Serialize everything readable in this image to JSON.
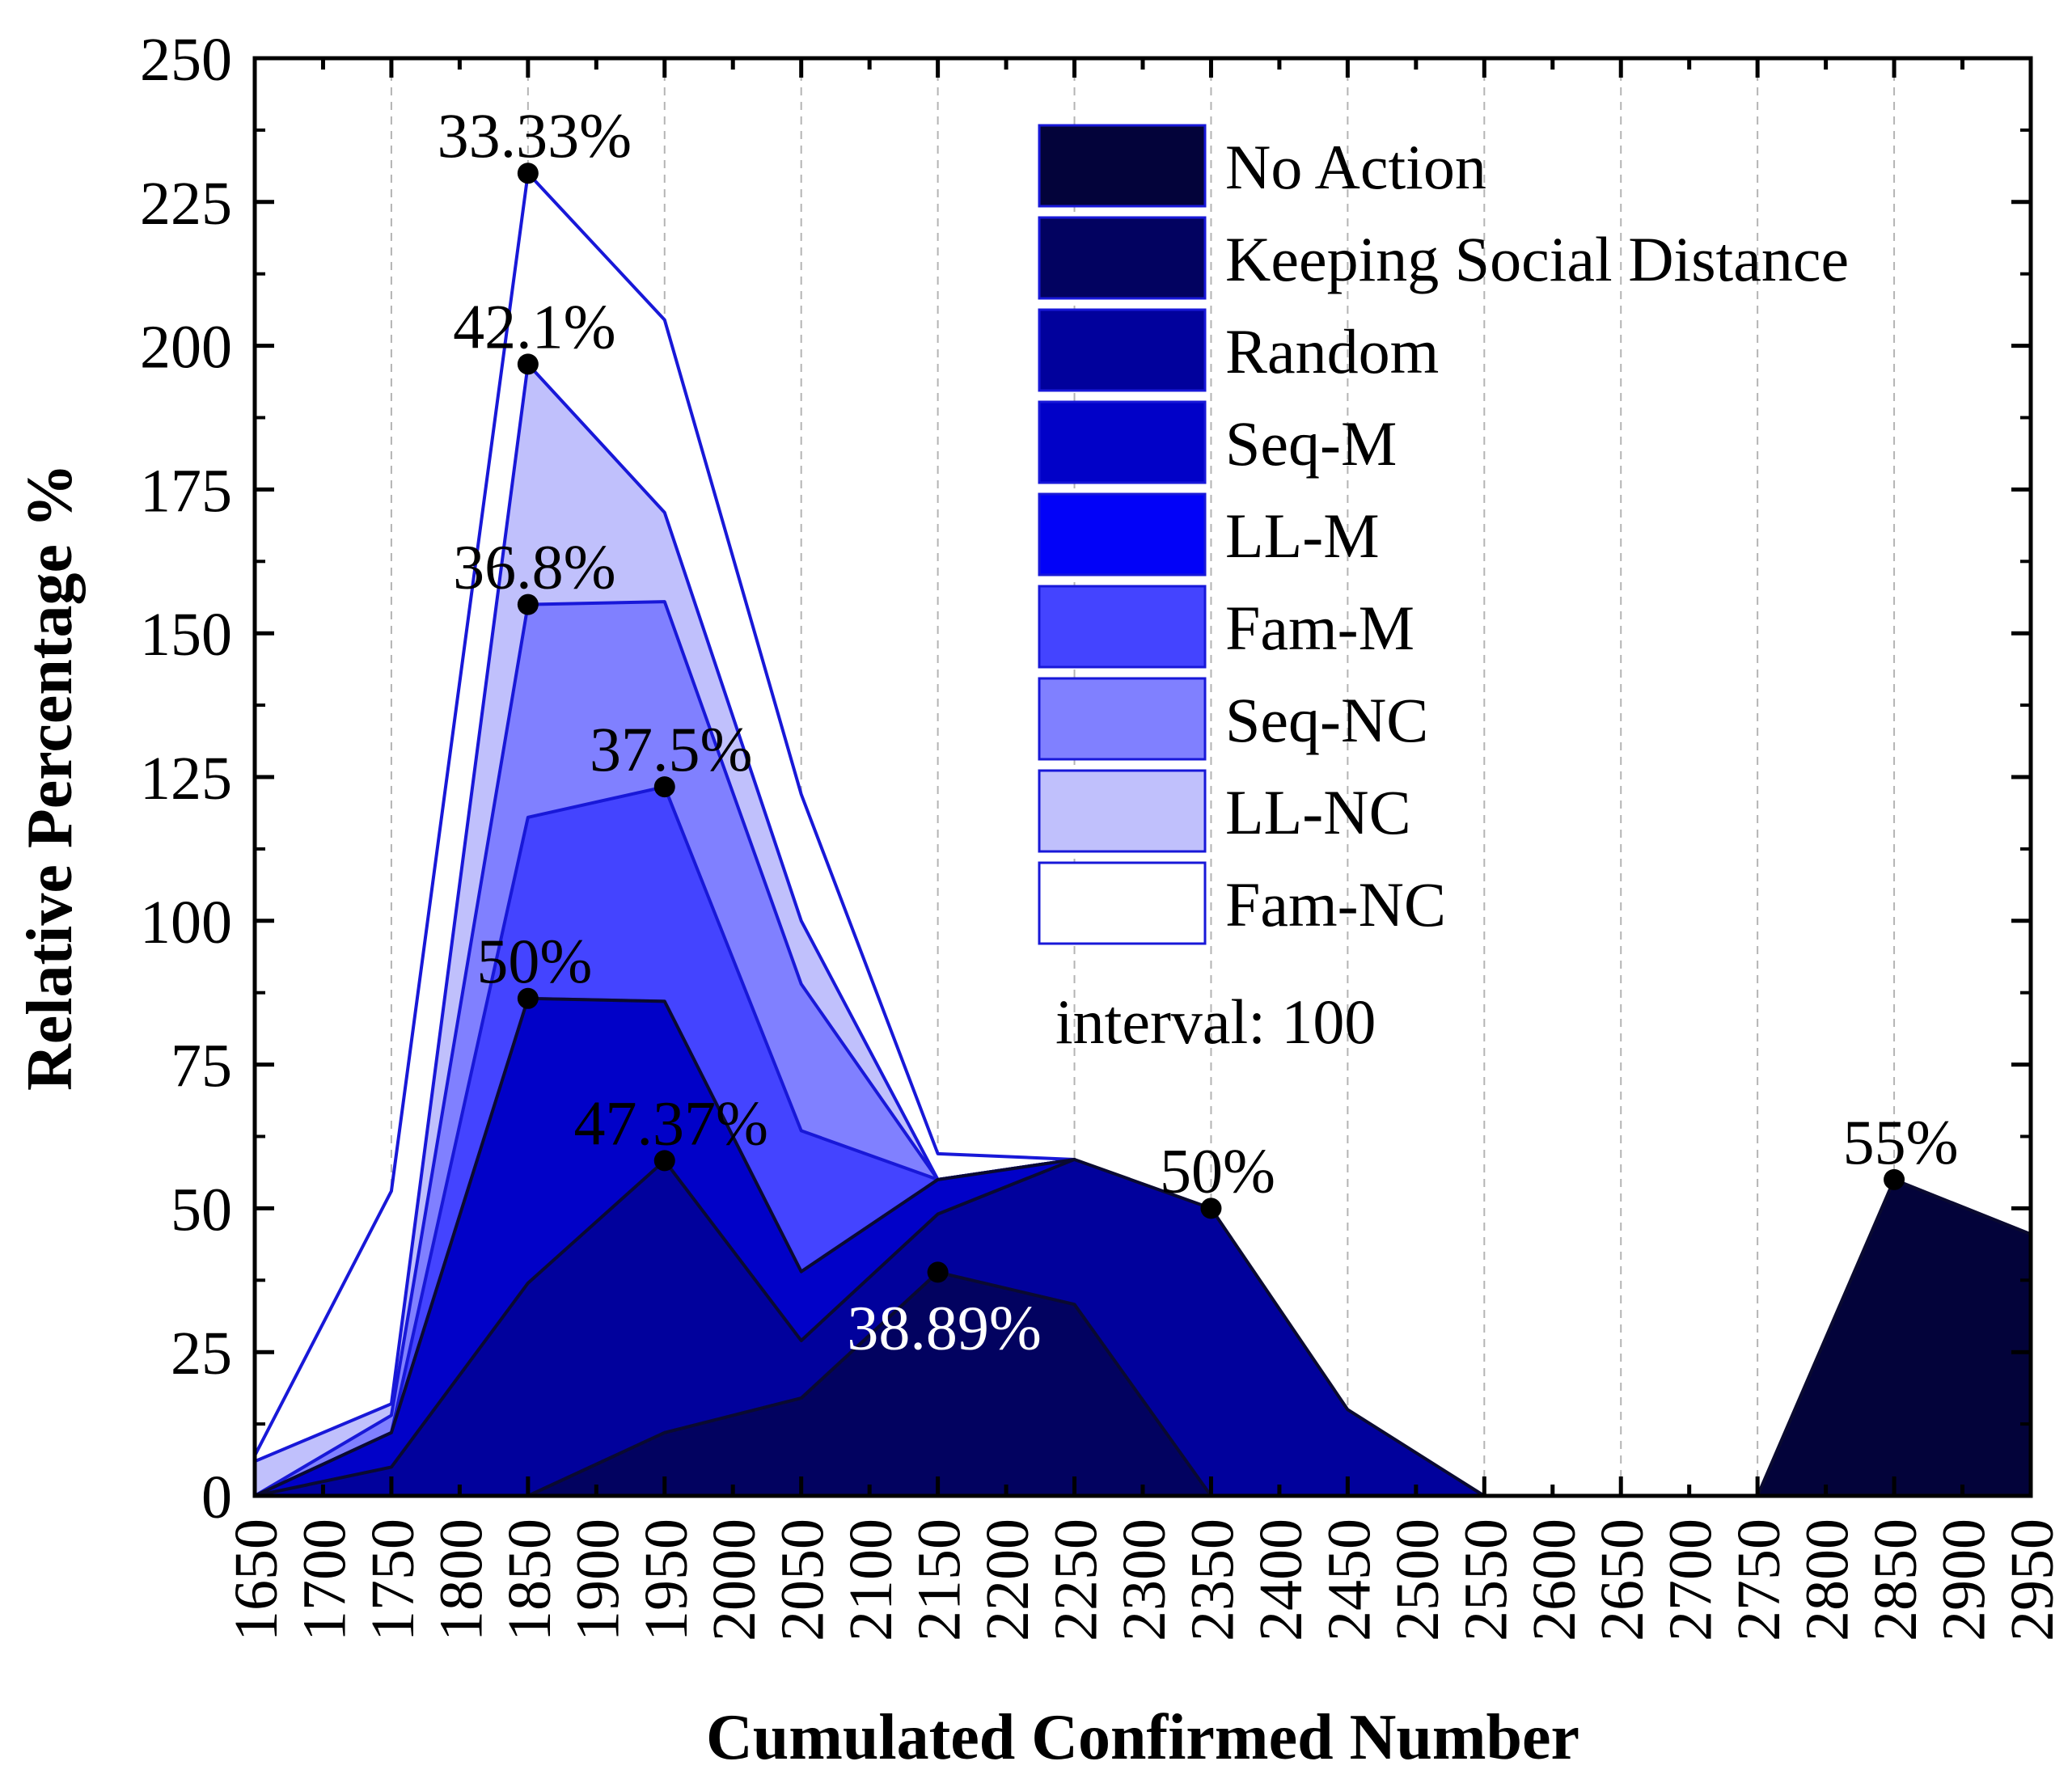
{
  "chart_data": {
    "type": "area",
    "title": "",
    "xlabel": "Cumulated Confirmed Number",
    "ylabel": "Relative Percentage %",
    "x": [
      1650,
      1750,
      1850,
      1950,
      2050,
      2150,
      2250,
      2350,
      2450,
      2550,
      2650,
      2750,
      2850,
      2950
    ],
    "xlim": [
      1650,
      2950
    ],
    "ylim": [
      0,
      250
    ],
    "x_ticks": [
      1650,
      1700,
      1750,
      1800,
      1850,
      1900,
      1950,
      2000,
      2050,
      2100,
      2150,
      2200,
      2250,
      2300,
      2350,
      2400,
      2450,
      2500,
      2550,
      2600,
      2650,
      2700,
      2750,
      2800,
      2850,
      2900,
      2950
    ],
    "y_ticks": [
      0,
      25,
      50,
      75,
      100,
      125,
      150,
      175,
      200,
      225,
      250
    ],
    "grid": "vertical dashed",
    "legend_position": "top-right",
    "note": "interval: 100",
    "series": [
      {
        "name": "No Action",
        "color": "#03033a",
        "values": [
          0,
          0,
          0,
          0,
          0,
          0,
          0,
          0,
          0,
          0,
          0,
          0,
          55,
          45.5
        ]
      },
      {
        "name": "Keeping Social Distance",
        "color": "#020260",
        "values": [
          0,
          0,
          0,
          11,
          17,
          38.89,
          33.3,
          0,
          0,
          0,
          0,
          0,
          0,
          0
        ]
      },
      {
        "name": "Random",
        "color": "#01019c",
        "values": [
          0,
          5,
          37,
          58.3,
          27,
          49,
          58.5,
          50,
          15,
          0,
          0,
          0,
          0,
          0
        ]
      },
      {
        "name": "Seq-M",
        "color": "#0101c8",
        "values": [
          0,
          11,
          86.5,
          86,
          39,
          55,
          58.5,
          0,
          0,
          0,
          0,
          0,
          0,
          0
        ]
      },
      {
        "name": "LL-M",
        "color": "#0202f8",
        "values": [
          0,
          11,
          86.5,
          86,
          39,
          55,
          58.5,
          0,
          0,
          0,
          0,
          0,
          0,
          0
        ]
      },
      {
        "name": "Fam-M",
        "color": "#4444ff",
        "values": [
          0,
          11,
          118,
          123.3,
          63.5,
          55,
          58.5,
          0,
          0,
          0,
          0,
          0,
          0,
          0
        ]
      },
      {
        "name": "Seq-NC",
        "color": "#8080ff",
        "values": [
          0,
          14,
          155,
          155.5,
          89,
          55,
          58.5,
          0,
          0,
          0,
          0,
          0,
          0,
          0
        ]
      },
      {
        "name": "LL-NC",
        "color": "#c0c0fc",
        "values": [
          6,
          16,
          196.8,
          171,
          100,
          55,
          58.5,
          0,
          0,
          0,
          0,
          0,
          0,
          0
        ]
      },
      {
        "name": "Fam-NC",
        "color": "#ffffff",
        "values": [
          7,
          53,
          230,
          204.5,
          122,
          59.5,
          58.5,
          0,
          0,
          0,
          0,
          0,
          0,
          0
        ]
      }
    ],
    "annotations": [
      {
        "text": "33.33%",
        "x": 1850,
        "y": 230,
        "color": "#000000"
      },
      {
        "text": "42.1%",
        "x": 1850,
        "y": 196.8,
        "color": "#000000"
      },
      {
        "text": "36.8%",
        "x": 1850,
        "y": 155,
        "color": "#000000"
      },
      {
        "text": "37.5%",
        "x": 1950,
        "y": 123.3,
        "color": "#000000"
      },
      {
        "text": "50%",
        "x": 1850,
        "y": 86.5,
        "color": "#000000"
      },
      {
        "text": "47.37%",
        "x": 1950,
        "y": 58.3,
        "color": "#000000"
      },
      {
        "text": "38.89%",
        "x": 2150,
        "y": 38.89,
        "color": "#ffffff"
      },
      {
        "text": "50%",
        "x": 2350,
        "y": 50,
        "color": "#000000"
      },
      {
        "text": "55%",
        "x": 2850,
        "y": 55,
        "color": "#000000"
      }
    ]
  }
}
